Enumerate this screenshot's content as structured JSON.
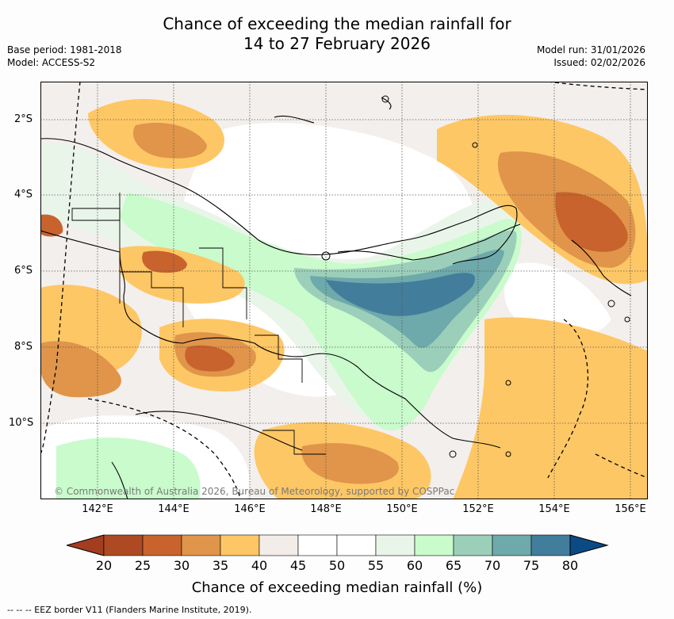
{
  "title_line1": "Chance of exceeding the median rainfall for",
  "title_line2": "14 to 27 February 2026",
  "base_period": "Base period: 1981-2018",
  "model": "Model: ACCESS-S2",
  "model_run": "Model run: 31/01/2026",
  "issued": "Issued: 02/02/2026",
  "lat_labels": [
    "2°S",
    "4°S",
    "6°S",
    "8°S",
    "10°S"
  ],
  "lon_labels": [
    "142°E",
    "144°E",
    "146°E",
    "148°E",
    "150°E",
    "152°E",
    "154°E",
    "156°E"
  ],
  "copyright": "© Commonwealth of Australia 2026, Bureau of Meteorology, supported by COSPPac",
  "colorbar": {
    "ticks": [
      "20",
      "25",
      "30",
      "35",
      "40",
      "45",
      "50",
      "55",
      "60",
      "65",
      "70",
      "75",
      "80"
    ],
    "colors": [
      "#ae4a23",
      "#c8632d",
      "#e0954a",
      "#fec765",
      "#f2ede9",
      "#ffffff",
      "#ffffff",
      "#eaf5e9",
      "#c9fbcc",
      "#9ccfba",
      "#6ea9ab",
      "#427d9b"
    ],
    "low_extend_color": "#a33d20",
    "high_extend_color": "#0b4b85",
    "title": "Chance of exceeding median rainfall (%)"
  },
  "footer": "--  --  -- EEZ border V11 (Flanders Marine Institute, 2019)."
}
